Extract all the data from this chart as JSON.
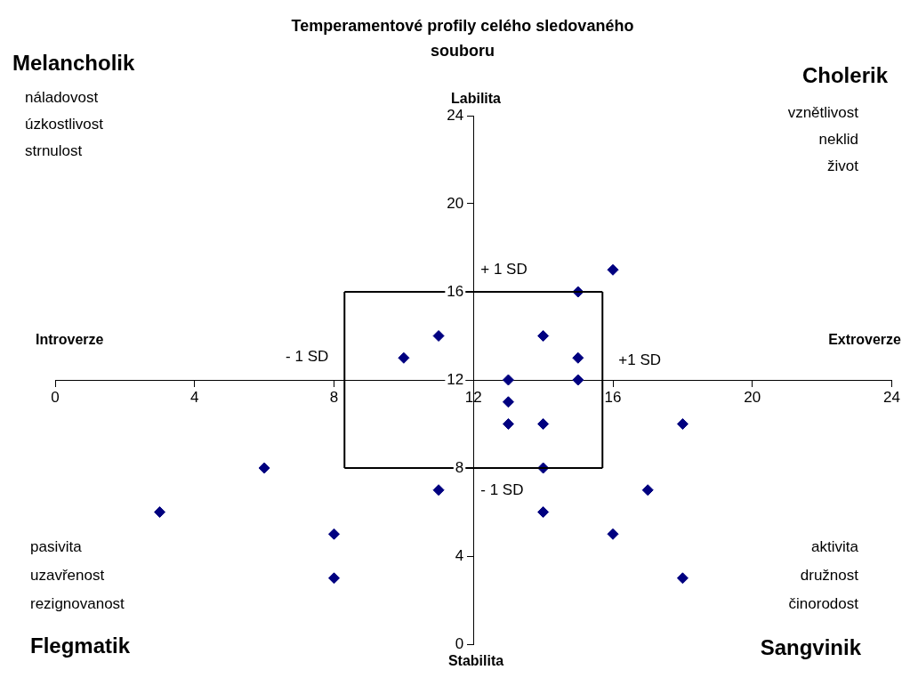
{
  "chart_data": {
    "type": "scatter",
    "title": "Temperamentové profily celého sledovaného souboru",
    "x": [
      16,
      15,
      11,
      14,
      10,
      15,
      13,
      15,
      13,
      13,
      14,
      18,
      6,
      14,
      11,
      17,
      3,
      14,
      8,
      16,
      8,
      18
    ],
    "series": [
      {
        "color": "#000080",
        "values": [
          17,
          16,
          14,
          14,
          13,
          13,
          12,
          12,
          11,
          10,
          10,
          10,
          8,
          8,
          7,
          7,
          6,
          6,
          5,
          5,
          3,
          3
        ]
      }
    ],
    "marker": "diamond",
    "xlim": [
      0,
      24
    ],
    "xticks": [
      0,
      4,
      8,
      12,
      16,
      20,
      24
    ],
    "ylim": [
      0,
      24
    ],
    "yticks": [
      0,
      4,
      8,
      12,
      16,
      20,
      24
    ],
    "grid": false,
    "legend": false,
    "ref_lines": [
      {
        "axis": "y",
        "value": 16,
        "label": "+ 1 SD",
        "color": "#000000"
      },
      {
        "axis": "y",
        "value": 8,
        "label": "- 1 SD",
        "color": "#000000"
      },
      {
        "axis": "x",
        "value": 8.3,
        "label": "- 1 SD",
        "color": "#000000"
      },
      {
        "axis": "x",
        "value": 15.7,
        "label": "+1 SD",
        "color": "#000000"
      }
    ],
    "annotations": [
      "Melancholik",
      "náladovost",
      "úzkostlivost",
      "strnulost",
      "Cholerik",
      "vznětlivost",
      "neklid",
      "život",
      "pasivita",
      "uzavřenost",
      "rezignovanost",
      "Flegmatik",
      "aktivita",
      "družnost",
      "činorodost",
      "Sangvinik",
      "Labilita",
      "Stabilita",
      "Introverze",
      "Extroverze"
    ]
  }
}
